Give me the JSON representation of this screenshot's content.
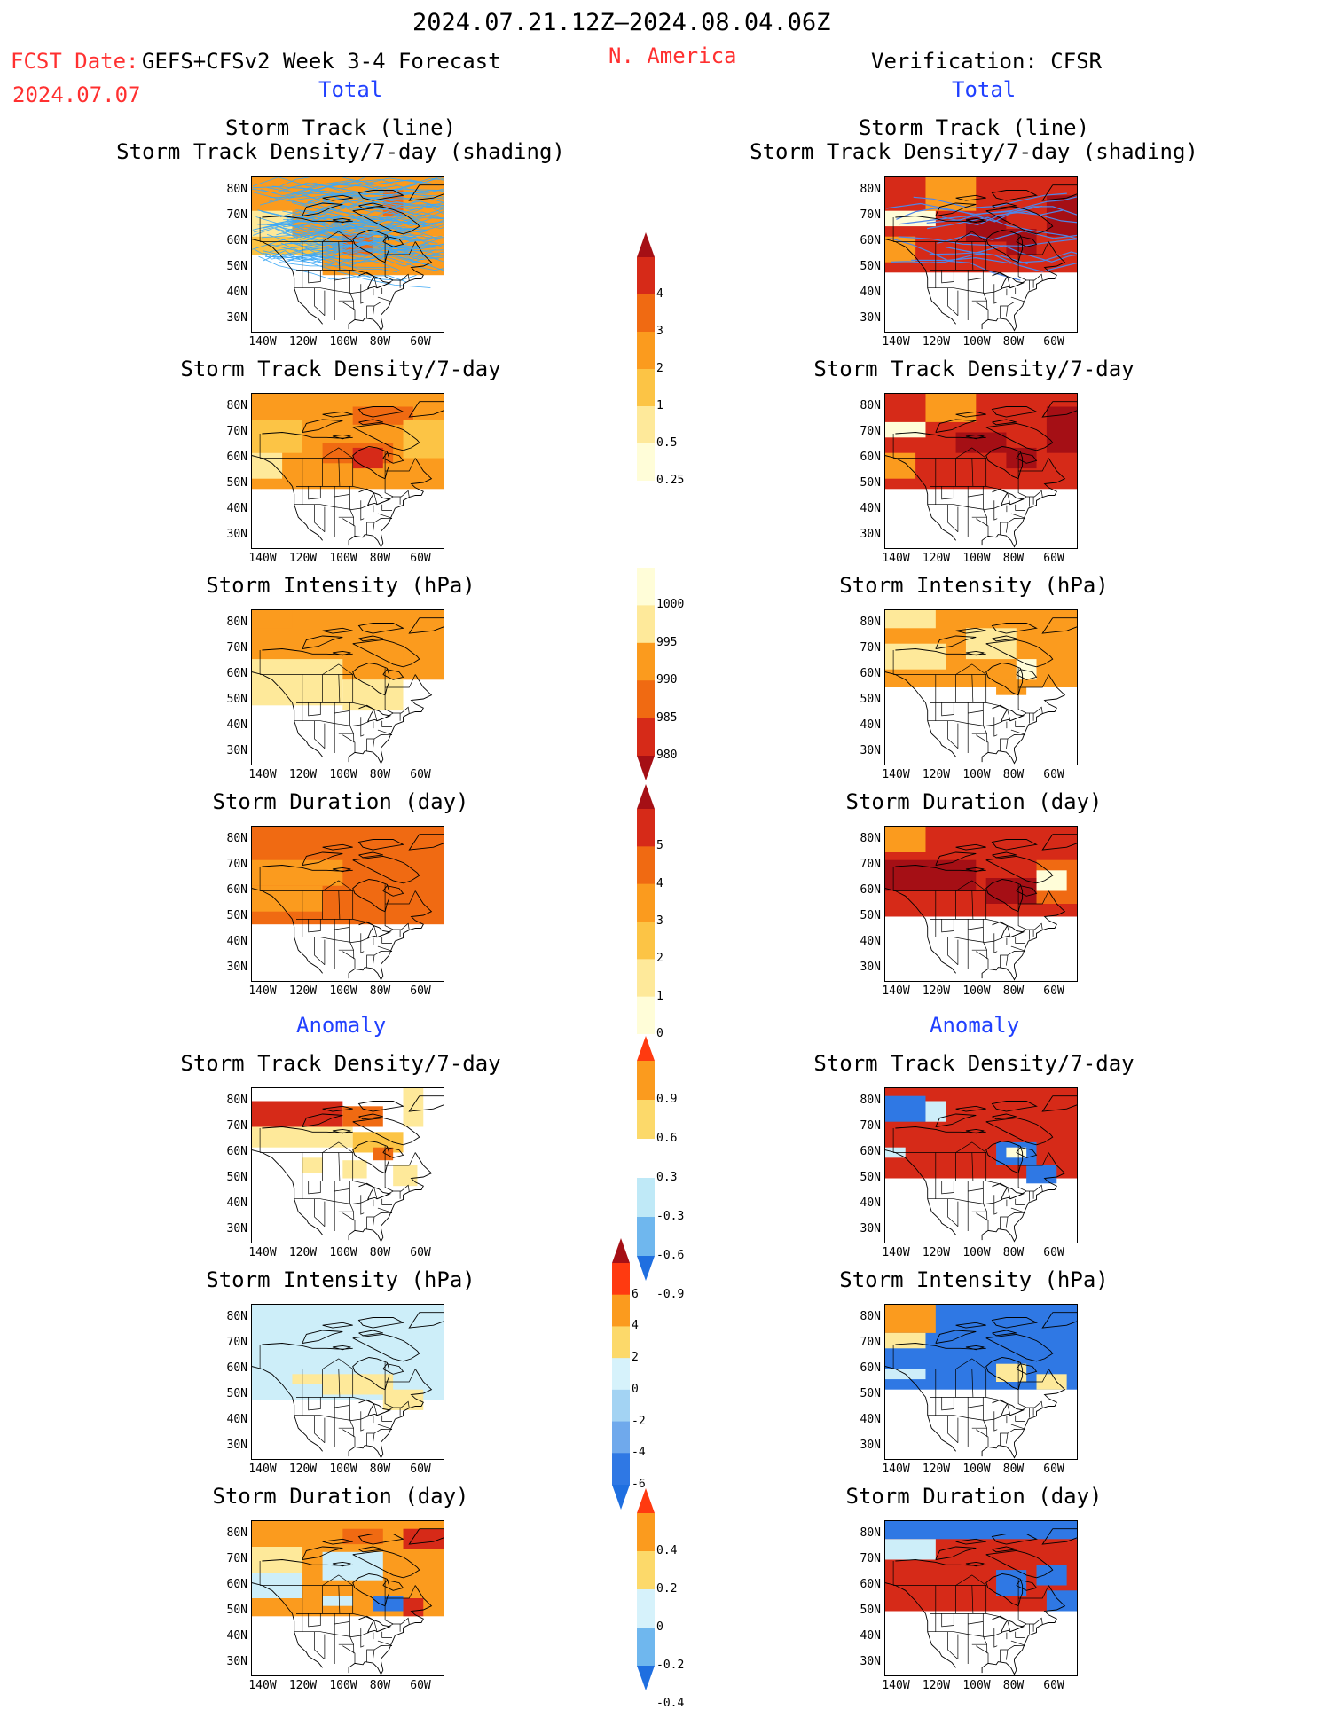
{
  "header": {
    "period": "2024.07.21.12Z–2024.08.04.06Z",
    "fcst_label": "FCST Date:",
    "fcst_date": "2024.07.07",
    "model": "GEFS+CFSv2 Week 3-4 Forecast",
    "region": "N. America",
    "verification": "Verification: CFSR",
    "total_left": "Total",
    "total_right": "Total",
    "anomaly_left": "Anomaly",
    "anomaly_right": "Anomaly"
  },
  "panel_titles": {
    "track_line": "Storm Track (line)",
    "track_shading": "Storm Track Density/7-day (shading)",
    "density": "Storm Track Density/7-day",
    "intensity": "Storm Intensity (hPa)",
    "duration": "Storm Duration (day)"
  },
  "axes": {
    "lat_labels": [
      "80N",
      "70N",
      "60N",
      "50N",
      "40N",
      "30N"
    ],
    "lon_labels": [
      "140W",
      "120W",
      "100W",
      "80W",
      "60W"
    ]
  },
  "colorbars": {
    "density_total": {
      "labels": [
        "4",
        "3",
        "2",
        "1",
        "0.5",
        "0.25"
      ],
      "colors": [
        "#a50f15",
        "#d62a18",
        "#f06a12",
        "#fb9b1e",
        "#fcc445",
        "#fee99a",
        "#fffdd8"
      ]
    },
    "intensity_total": {
      "labels": [
        "1000",
        "995",
        "990",
        "985",
        "980"
      ],
      "colors": [
        "#fffdd8",
        "#fee99a",
        "#fb9b1e",
        "#f06a12",
        "#d62a18",
        "#a50f15"
      ]
    },
    "duration_total": {
      "labels": [
        "5",
        "4",
        "3",
        "2",
        "1",
        "0"
      ],
      "colors": [
        "#a50f15",
        "#d62a18",
        "#f06a12",
        "#fb9b1e",
        "#fcc445",
        "#fee99a",
        "#fffdd8"
      ]
    },
    "density_anom": {
      "labels": [
        "0.9",
        "0.6",
        "0.3",
        "-0.3",
        "-0.6",
        "-0.9"
      ],
      "colors": [
        "#ff3a10",
        "#fb9b1e",
        "#fcd96a",
        "#ffffff",
        "#bfe9f7",
        "#6fb7ee",
        "#1f6fe0"
      ]
    },
    "intensity_anom": {
      "labels": [
        "6",
        "4",
        "2",
        "0",
        "-2",
        "-4",
        "-6"
      ],
      "colors": [
        "#a50f15",
        "#ff3a10",
        "#fb9b1e",
        "#fcd96a",
        "#d6f2fb",
        "#a3d3f3",
        "#6fa9ec",
        "#2f78e4",
        "#1f6fe0"
      ]
    },
    "duration_anom": {
      "labels": [
        "0.4",
        "0.2",
        "0",
        "-0.2",
        "-0.4"
      ],
      "colors": [
        "#ff3a10",
        "#fb9b1e",
        "#fcd96a",
        "#d6f2fb",
        "#6fb7ee",
        "#1f6fe0"
      ]
    }
  },
  "palette": {
    "dark_red": "#a50f15",
    "red": "#d62a18",
    "orange_red": "#f06a12",
    "orange": "#fb9b1e",
    "light_orange": "#fcc445",
    "yellow": "#fee99a",
    "pale_yellow": "#fffdd8",
    "light_blue": "#cdeef9",
    "blue": "#2f78e4",
    "title_red": "#ff3030",
    "title_blue": "#2040ff"
  }
}
